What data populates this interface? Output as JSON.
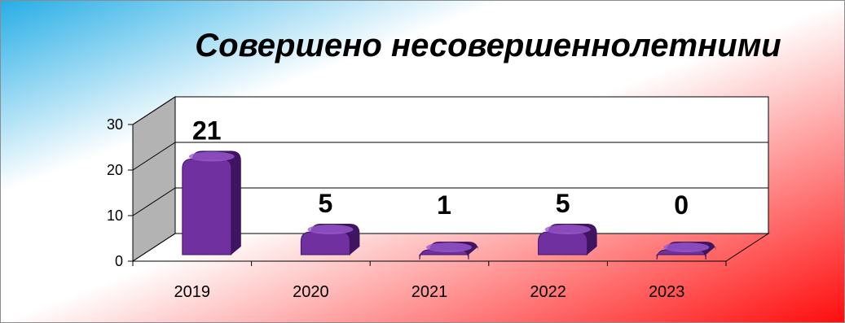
{
  "colors": {
    "background_start": "#27aee6",
    "background_mid": "#ffffff",
    "background_end": "#ff0d0d",
    "bar_face": "#7030a0",
    "bar_top": "#9b59d0",
    "bar_shadow": "#3f1561",
    "wall_side": "#b3b3b3",
    "wall_back": "#ffffff"
  },
  "chart_data": {
    "type": "bar",
    "title": "Совершено несовершеннолетними",
    "categories": [
      "2019",
      "2020",
      "2021",
      "2022",
      "2023"
    ],
    "values": [
      21,
      5,
      1,
      5,
      0
    ],
    "data_labels": [
      "21",
      "5",
      "1",
      "5",
      "0"
    ],
    "ylim": [
      0,
      30
    ],
    "yticks": [
      "0",
      "10",
      "20",
      "30"
    ],
    "grid": true,
    "style": "3d-cylinder",
    "legend": "none"
  }
}
